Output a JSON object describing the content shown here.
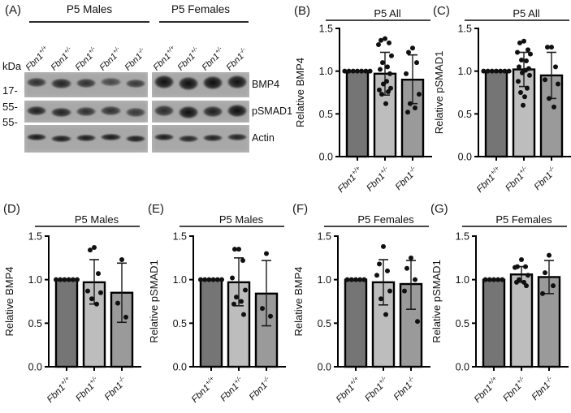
{
  "colors": {
    "background": "#ffffff",
    "bar_wt": "#757575",
    "bar_het": "#bdbdbd",
    "bar_ko": "#9a9a9a",
    "axis": "#000000",
    "dot": "#101010",
    "strip_bg": "#a8a8a8",
    "header_line": "#2b2b2b"
  },
  "panel_a": {
    "label": "(A)",
    "kda_label": "kDa",
    "markers": [
      "17-",
      "55-",
      "55-"
    ],
    "groups": [
      {
        "name": "P5 Males",
        "lanes": [
          {
            "base": "Fbn1",
            "sup": "+/+"
          },
          {
            "base": "Fbn1",
            "sup": "+/-"
          },
          {
            "base": "Fbn1",
            "sup": "+/-"
          },
          {
            "base": "Fbn1",
            "sup": "+/-"
          },
          {
            "base": "Fbn1",
            "sup": "-/-"
          }
        ]
      },
      {
        "name": "P5 Females",
        "lanes": [
          {
            "base": "Fbn1",
            "sup": "+/+"
          },
          {
            "base": "Fbn1",
            "sup": "+/-"
          },
          {
            "base": "Fbn1",
            "sup": "+/-"
          },
          {
            "base": "Fbn1",
            "sup": "-/-"
          }
        ]
      }
    ],
    "rows": [
      {
        "label": "BMP4",
        "male_bands": [
          0.78,
          0.85,
          0.78,
          0.62,
          0.72
        ],
        "female_bands": [
          0.97,
          0.97,
          0.99,
          0.96
        ],
        "male_h": 10,
        "female_h": 14
      },
      {
        "label": "pSMAD1",
        "male_bands": [
          0.88,
          0.86,
          0.78,
          0.78,
          0.72
        ],
        "female_bands": [
          0.8,
          0.97,
          0.88,
          0.98
        ],
        "male_h": 10,
        "female_h": 12
      },
      {
        "label": "Actin",
        "male_bands": [
          0.92,
          0.9,
          0.9,
          0.92,
          0.9
        ],
        "female_bands": [
          0.9,
          0.85,
          0.88,
          0.86
        ],
        "male_h": 7,
        "female_h": 7
      }
    ]
  },
  "chart_data": [
    {
      "panel": "(B)",
      "type": "bar",
      "title": "P5 All",
      "ylabel": "Relative BMP4",
      "ylim": [
        0,
        1.5
      ],
      "yticks": [
        "0.0",
        "0.5",
        "1.0",
        "1.5"
      ],
      "grid": false,
      "legend": "none",
      "categories": [
        {
          "base": "Fbn1",
          "sup": "+/+"
        },
        {
          "base": "Fbn1",
          "sup": "+/-"
        },
        {
          "base": "Fbn1",
          "sup": "-/-"
        }
      ],
      "bars": [
        {
          "mean": 1.0,
          "sd_lo": null,
          "sd_hi": null,
          "color_key": "bar_wt",
          "points": [
            1.0,
            1.0,
            1.0,
            1.0,
            1.0,
            1.0,
            1.0
          ]
        },
        {
          "mean": 0.97,
          "sd_lo": 0.72,
          "sd_hi": 1.22,
          "color_key": "bar_het",
          "points": [
            1.38,
            1.36,
            1.33,
            1.31,
            1.18,
            1.1,
            1.05,
            1.02,
            0.97,
            0.88,
            0.85,
            0.8,
            0.78,
            0.76,
            0.73,
            0.62
          ]
        },
        {
          "mean": 0.9,
          "sd_lo": 0.62,
          "sd_hi": 1.19,
          "color_key": "bar_ko",
          "points": [
            1.27,
            1.22,
            1.1,
            0.97,
            0.73,
            0.62,
            0.57,
            0.52
          ]
        }
      ]
    },
    {
      "panel": "(C)",
      "type": "bar",
      "title": "P5 All",
      "ylabel": "Relative pSMAD1",
      "ylim": [
        0,
        1.5
      ],
      "yticks": [
        "0.0",
        "0.5",
        "1.0",
        "1.5"
      ],
      "grid": false,
      "legend": "none",
      "categories": [
        {
          "base": "Fbn1",
          "sup": "+/+"
        },
        {
          "base": "Fbn1",
          "sup": "+/-"
        },
        {
          "base": "Fbn1",
          "sup": "-/-"
        }
      ],
      "bars": [
        {
          "mean": 1.0,
          "sd_lo": null,
          "sd_hi": null,
          "color_key": "bar_wt",
          "points": [
            1.0,
            1.0,
            1.0,
            1.0,
            1.0,
            1.0,
            1.0
          ]
        },
        {
          "mean": 1.02,
          "sd_lo": 0.82,
          "sd_hi": 1.22,
          "color_key": "bar_het",
          "points": [
            1.35,
            1.33,
            1.25,
            1.22,
            1.2,
            1.13,
            1.12,
            1.05,
            1.03,
            1.01,
            0.98,
            0.95,
            0.88,
            0.8,
            0.75,
            0.7,
            0.6
          ]
        },
        {
          "mean": 0.95,
          "sd_lo": 0.68,
          "sd_hi": 1.22,
          "color_key": "bar_ko",
          "points": [
            1.28,
            1.28,
            1.05,
            0.9,
            0.85,
            0.68,
            0.58
          ]
        }
      ]
    },
    {
      "panel": "(D)",
      "type": "bar",
      "title": "P5 Males",
      "ylabel": "Relative BMP4",
      "ylim": [
        0,
        1.5
      ],
      "yticks": [
        "0.0",
        "0.5",
        "1.0",
        "1.5"
      ],
      "grid": false,
      "legend": "none",
      "categories": [
        {
          "base": "Fbn1",
          "sup": "+/+"
        },
        {
          "base": "Fbn1",
          "sup": "+/-"
        },
        {
          "base": "Fbn1",
          "sup": "-/-"
        }
      ],
      "bars": [
        {
          "mean": 1.0,
          "sd_lo": null,
          "sd_hi": null,
          "color_key": "bar_wt",
          "points": [
            1.0,
            1.0,
            1.0,
            1.0,
            1.0,
            1.0
          ]
        },
        {
          "mean": 0.97,
          "sd_lo": 0.72,
          "sd_hi": 1.23,
          "color_key": "bar_het",
          "points": [
            1.37,
            1.34,
            1.07,
            0.87,
            0.85,
            0.78,
            0.72
          ]
        },
        {
          "mean": 0.85,
          "sd_lo": 0.51,
          "sd_hi": 1.19,
          "color_key": "bar_ko",
          "points": [
            1.23,
            0.73,
            0.57
          ]
        }
      ]
    },
    {
      "panel": "(E)",
      "type": "bar",
      "title": "P5 Males",
      "ylabel": "Relative pSMAD1",
      "ylim": [
        0,
        1.5
      ],
      "yticks": [
        "0.0",
        "0.5",
        "1.0",
        "1.5"
      ],
      "grid": false,
      "legend": "none",
      "categories": [
        {
          "base": "Fbn1",
          "sup": "+/+"
        },
        {
          "base": "Fbn1",
          "sup": "+/-"
        },
        {
          "base": "Fbn1",
          "sup": "-/-"
        }
      ],
      "bars": [
        {
          "mean": 1.0,
          "sd_lo": null,
          "sd_hi": null,
          "color_key": "bar_wt",
          "points": [
            1.0,
            1.0,
            1.0,
            1.0,
            1.0,
            1.0
          ]
        },
        {
          "mean": 0.97,
          "sd_lo": 0.7,
          "sd_hi": 1.25,
          "color_key": "bar_het",
          "points": [
            1.35,
            1.35,
            1.22,
            1.02,
            0.88,
            0.8,
            0.75,
            0.72,
            0.6
          ]
        },
        {
          "mean": 0.84,
          "sd_lo": 0.47,
          "sd_hi": 1.22,
          "color_key": "bar_ko",
          "points": [
            1.3,
            0.67,
            0.58
          ]
        }
      ]
    },
    {
      "panel": "(F)",
      "type": "bar",
      "title": "P5 Females",
      "ylabel": "Relative BMP4",
      "ylim": [
        0,
        1.5
      ],
      "yticks": [
        "0.0",
        "0.5",
        "1.0",
        "1.5"
      ],
      "grid": false,
      "legend": "none",
      "categories": [
        {
          "base": "Fbn1",
          "sup": "+/+"
        },
        {
          "base": "Fbn1",
          "sup": "+/-"
        },
        {
          "base": "Fbn1",
          "sup": "-/-"
        }
      ],
      "bars": [
        {
          "mean": 1.0,
          "sd_lo": null,
          "sd_hi": null,
          "color_key": "bar_wt",
          "points": [
            1.0,
            1.0,
            1.0,
            1.0,
            1.0
          ]
        },
        {
          "mean": 0.97,
          "sd_lo": 0.71,
          "sd_hi": 1.23,
          "color_key": "bar_het",
          "points": [
            1.38,
            1.18,
            1.1,
            1.05,
            0.87,
            0.78,
            0.6
          ]
        },
        {
          "mean": 0.95,
          "sd_lo": 0.66,
          "sd_hi": 1.22,
          "color_key": "bar_ko",
          "points": [
            1.25,
            1.13,
            1.0,
            0.87,
            0.52
          ]
        }
      ]
    },
    {
      "panel": "(G)",
      "type": "bar",
      "title": "P5 Females",
      "ylabel": "Relative pSMAD1",
      "ylim": [
        0,
        1.5
      ],
      "yticks": [
        "0.0",
        "0.5",
        "1.0",
        "1.5"
      ],
      "grid": false,
      "legend": "none",
      "categories": [
        {
          "base": "Fbn1",
          "sup": "+/+"
        },
        {
          "base": "Fbn1",
          "sup": "+/-"
        },
        {
          "base": "Fbn1",
          "sup": "-/-"
        }
      ],
      "bars": [
        {
          "mean": 1.0,
          "sd_lo": null,
          "sd_hi": null,
          "color_key": "bar_wt",
          "points": [
            1.0,
            1.0,
            1.0,
            1.0,
            1.0
          ]
        },
        {
          "mean": 1.06,
          "sd_lo": 0.97,
          "sd_hi": 1.15,
          "color_key": "bar_het",
          "points": [
            1.23,
            1.15,
            1.15,
            1.14,
            1.05,
            1.0,
            0.97,
            0.97,
            0.93
          ]
        },
        {
          "mean": 1.03,
          "sd_lo": 0.84,
          "sd_hi": 1.22,
          "color_key": "bar_ko",
          "points": [
            1.28,
            1.08,
            0.93,
            0.84
          ]
        }
      ]
    }
  ]
}
